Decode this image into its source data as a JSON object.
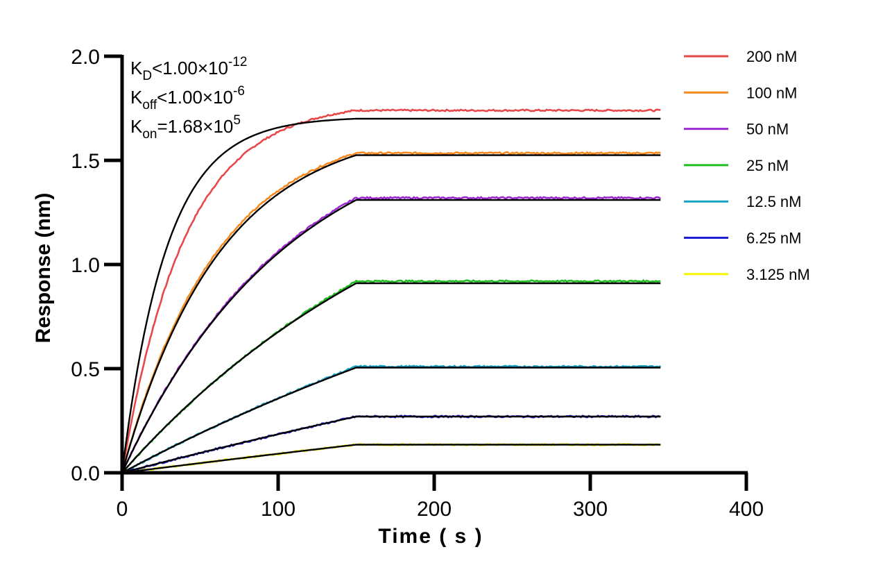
{
  "chart_data": {
    "type": "line",
    "xlabel": "Time ( s )",
    "ylabel": "Response (nm)",
    "xlim": [
      0,
      400
    ],
    "ylim": [
      0,
      2.0
    ],
    "xticks": [
      0,
      100,
      200,
      300,
      400
    ],
    "yticks": [
      0.0,
      0.5,
      1.0,
      1.5,
      2.0
    ],
    "xtick_labels": [
      "0",
      "100",
      "200",
      "300",
      "400"
    ],
    "ytick_labels": [
      "0.0",
      "0.5",
      "1.0",
      "1.5",
      "2.0"
    ],
    "grid": false,
    "legend_position": "right",
    "annotations": [
      {
        "main": "K",
        "sub": "D",
        "rest": "<1.00×10",
        "sup": "-12"
      },
      {
        "main": "K",
        "sub": "off",
        "rest": "<1.00×10",
        "sup": "-6"
      },
      {
        "main": "K",
        "sub": "on",
        "rest": "=1.68×10",
        "sup": "5"
      }
    ],
    "association_end": 150,
    "x_end": 345,
    "series": [
      {
        "name": "200 nM",
        "color": "#e8474a",
        "plateau": 1.74,
        "k": 0.025,
        "fit_plateau": 1.7,
        "fit_k": 0.035
      },
      {
        "name": "100 nM",
        "color": "#f5891e",
        "plateau": 1.535,
        "k": 0.0165,
        "fit_plateau": 1.525,
        "fit_k": 0.016
      },
      {
        "name": "50 nM",
        "color": "#9b28d0",
        "plateau": 1.32,
        "k": 0.0093,
        "fit_plateau": 1.31,
        "fit_k": 0.0093
      },
      {
        "name": "25 nM",
        "color": "#1fbd1f",
        "plateau": 0.92,
        "k": 0.0045,
        "fit_plateau": 0.91,
        "fit_k": 0.0048
      },
      {
        "name": "12.5 nM",
        "color": "#17a3c2",
        "plateau": 0.51,
        "k": 0.0022,
        "fit_plateau": 0.505,
        "fit_k": 0.0024
      },
      {
        "name": "6.25 nM",
        "color": "#1e1ed6",
        "plateau": 0.27,
        "k": 0.0011,
        "fit_plateau": 0.27,
        "fit_k": 0.0012
      },
      {
        "name": "3.125 nM",
        "color": "#f5f500",
        "plateau": 0.135,
        "k": 0.0006,
        "fit_plateau": 0.135,
        "fit_k": 0.0006
      }
    ]
  }
}
